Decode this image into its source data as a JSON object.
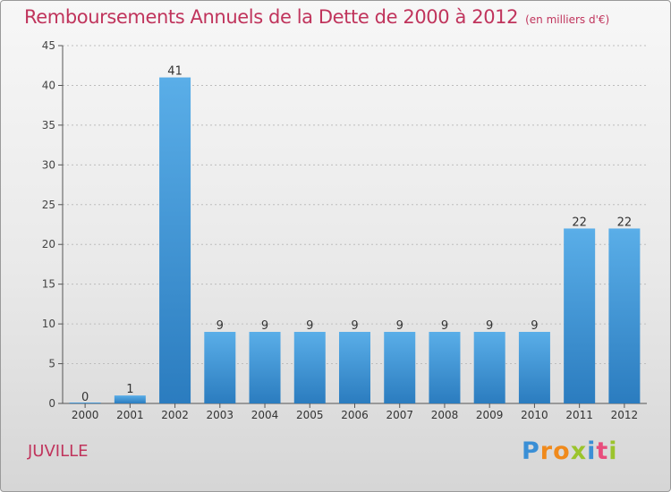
{
  "header": {
    "title": "Remboursements Annuels de la Dette de 2000 à 2012",
    "subtitle": "(en milliers d'€)"
  },
  "commune": "JUVILLE",
  "brand": {
    "letters": [
      {
        "ch": "P",
        "color": "#3a8fd6"
      },
      {
        "ch": "r",
        "color": "#f08a1c"
      },
      {
        "ch": "o",
        "color": "#f08a1c"
      },
      {
        "ch": "x",
        "color": "#9bc42c"
      },
      {
        "ch": "i",
        "color": "#3a8fd6"
      },
      {
        "ch": "t",
        "color": "#e84d7c"
      },
      {
        "ch": "i",
        "color": "#9bc42c"
      }
    ]
  },
  "colors": {
    "bar_light": "#5aaee8",
    "bar_dark": "#2b7cbf",
    "title": "#c0345c",
    "axis": "#555555",
    "grid": "#bdbdbd"
  },
  "chart_data": {
    "type": "bar",
    "title": "Remboursements Annuels de la Dette de 2000 à 2012",
    "subtitle": "(en milliers d'€)",
    "categories": [
      "2000",
      "2001",
      "2002",
      "2003",
      "2004",
      "2005",
      "2006",
      "2007",
      "2008",
      "2009",
      "2010",
      "2011",
      "2012"
    ],
    "values": [
      0,
      1,
      41,
      9,
      9,
      9,
      9,
      9,
      9,
      9,
      9,
      22,
      22
    ],
    "ylim": [
      0,
      45
    ],
    "yticks": [
      0,
      5,
      10,
      15,
      20,
      25,
      30,
      35,
      40,
      45
    ],
    "grid": true,
    "data_labels": true
  }
}
